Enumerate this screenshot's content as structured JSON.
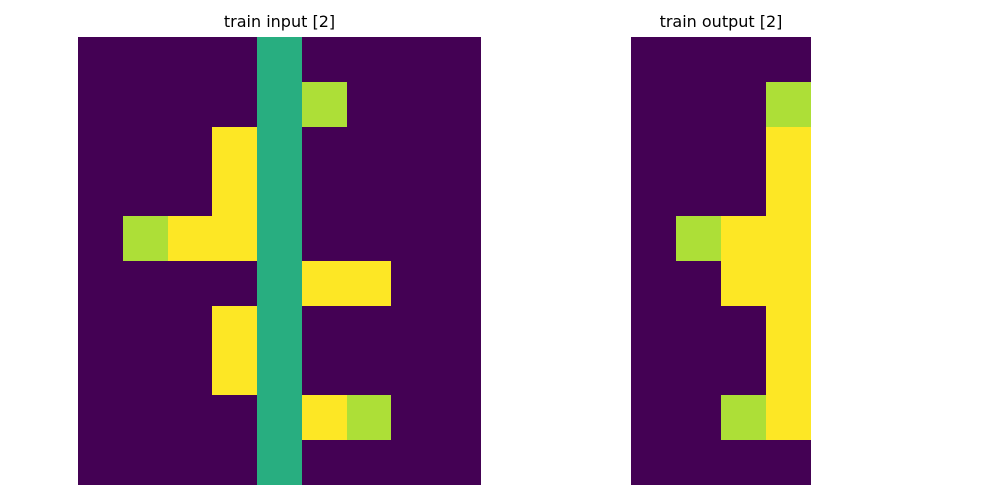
{
  "palette": {
    "0": "#440154",
    "2": "#addf37",
    "3": "#28ae80",
    "4": "#fde725"
  },
  "panels": {
    "input": {
      "title": "train input [2]",
      "grid": [
        [
          0,
          0,
          0,
          0,
          3,
          0,
          0,
          0,
          0
        ],
        [
          0,
          0,
          0,
          0,
          3,
          2,
          0,
          0,
          0
        ],
        [
          0,
          0,
          0,
          4,
          3,
          0,
          0,
          0,
          0
        ],
        [
          0,
          0,
          0,
          4,
          3,
          0,
          0,
          0,
          0
        ],
        [
          0,
          2,
          4,
          4,
          3,
          0,
          0,
          0,
          0
        ],
        [
          0,
          0,
          0,
          0,
          3,
          4,
          4,
          0,
          0
        ],
        [
          0,
          0,
          0,
          4,
          3,
          0,
          0,
          0,
          0
        ],
        [
          0,
          0,
          0,
          4,
          3,
          0,
          0,
          0,
          0
        ],
        [
          0,
          0,
          0,
          0,
          3,
          4,
          2,
          0,
          0
        ],
        [
          0,
          0,
          0,
          0,
          3,
          0,
          0,
          0,
          0
        ]
      ]
    },
    "output": {
      "title": "train output [2]",
      "grid": [
        [
          0,
          0,
          0,
          0
        ],
        [
          0,
          0,
          0,
          2
        ],
        [
          0,
          0,
          0,
          4
        ],
        [
          0,
          0,
          0,
          4
        ],
        [
          0,
          2,
          4,
          4
        ],
        [
          0,
          0,
          4,
          4
        ],
        [
          0,
          0,
          0,
          4
        ],
        [
          0,
          0,
          0,
          4
        ],
        [
          0,
          0,
          2,
          4
        ],
        [
          0,
          0,
          0,
          0
        ]
      ]
    }
  }
}
